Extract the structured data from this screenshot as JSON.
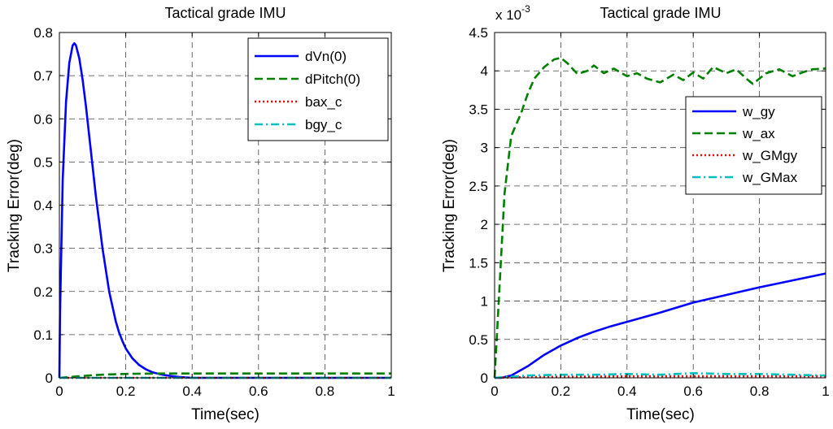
{
  "chart_data": [
    {
      "type": "line",
      "title": "Tactical grade IMU",
      "xlabel": "Time(sec)",
      "ylabel": "Tracking Error(deg)",
      "xlim": [
        0,
        1
      ],
      "ylim": [
        0,
        0.8
      ],
      "xticks": [
        0,
        0.2,
        0.4,
        0.6,
        0.8,
        1
      ],
      "xtick_labels": [
        "0",
        "0.2",
        "0.4",
        "0.6",
        "0.8",
        "1"
      ],
      "yticks": [
        0,
        0.1,
        0.2,
        0.3,
        0.4,
        0.5,
        0.6,
        0.7,
        0.8
      ],
      "ytick_labels": [
        "0",
        "0.1",
        "0.2",
        "0.3",
        "0.4",
        "0.5",
        "0.6",
        "0.7",
        "0.8"
      ],
      "grid": true,
      "legend_position": "top-right",
      "series": [
        {
          "name": "dVn(0)",
          "color": "#0000ff",
          "style": "solid",
          "x": [
            0,
            0.002,
            0.01,
            0.02,
            0.03,
            0.04,
            0.045,
            0.05,
            0.06,
            0.07,
            0.08,
            0.09,
            0.1,
            0.11,
            0.12,
            0.13,
            0.14,
            0.15,
            0.16,
            0.17,
            0.18,
            0.19,
            0.2,
            0.22,
            0.24,
            0.26,
            0.28,
            0.3,
            0.32,
            0.34,
            0.36,
            0.4,
            0.5,
            0.6,
            0.7,
            0.8,
            0.9,
            1.0
          ],
          "y": [
            0,
            0.15,
            0.46,
            0.64,
            0.73,
            0.77,
            0.775,
            0.77,
            0.74,
            0.69,
            0.63,
            0.56,
            0.49,
            0.42,
            0.36,
            0.3,
            0.25,
            0.2,
            0.165,
            0.13,
            0.105,
            0.085,
            0.068,
            0.045,
            0.03,
            0.02,
            0.013,
            0.009,
            0.006,
            0.004,
            0.002,
            0.0,
            0.0,
            0.0,
            0.0,
            0.0,
            0.0,
            0.0
          ]
        },
        {
          "name": "dPitch(0)",
          "color": "#008000",
          "style": "dashed",
          "x": [
            0,
            0.05,
            0.1,
            0.15,
            0.2,
            0.3,
            0.4,
            0.6,
            0.8,
            1.0
          ],
          "y": [
            0,
            0.003,
            0.006,
            0.008,
            0.009,
            0.01,
            0.01,
            0.01,
            0.01,
            0.01
          ]
        },
        {
          "name": "bax_c",
          "color": "#ff0000",
          "style": "dotted",
          "x": [
            0,
            1
          ],
          "y": [
            0,
            0
          ]
        },
        {
          "name": "bgy_c",
          "color": "#00bfbf",
          "style": "dashdot",
          "x": [
            0,
            1
          ],
          "y": [
            0,
            0
          ]
        }
      ]
    },
    {
      "type": "line",
      "title": "Tactical grade IMU",
      "multiplier": "x 10",
      "multiplier_exponent": "-3",
      "xlabel": "Time(sec)",
      "ylabel": "Tracking Error(deg)",
      "xlim": [
        0,
        1
      ],
      "ylim": [
        0,
        4.5
      ],
      "xticks": [
        0,
        0.2,
        0.4,
        0.6,
        0.8,
        1
      ],
      "xtick_labels": [
        "0",
        "0.2",
        "0.4",
        "0.6",
        "0.8",
        "1"
      ],
      "yticks": [
        0,
        0.5,
        1,
        1.5,
        2,
        2.5,
        3,
        3.5,
        4,
        4.5
      ],
      "ytick_labels": [
        "0",
        "0.5",
        "1",
        "1.5",
        "2",
        "2.5",
        "3",
        "3.5",
        "4",
        "4.5"
      ],
      "grid": true,
      "legend_position": "right",
      "series": [
        {
          "name": "w_gy",
          "color": "#0000ff",
          "style": "solid",
          "x": [
            0,
            0.02,
            0.05,
            0.1,
            0.15,
            0.2,
            0.25,
            0.3,
            0.35,
            0.4,
            0.5,
            0.6,
            0.7,
            0.8,
            0.9,
            1.0
          ],
          "y": [
            0,
            0.0,
            0.03,
            0.15,
            0.3,
            0.42,
            0.52,
            0.6,
            0.67,
            0.73,
            0.85,
            0.98,
            1.08,
            1.18,
            1.27,
            1.36
          ]
        },
        {
          "name": "w_ax",
          "color": "#008000",
          "style": "dashed",
          "x": [
            0,
            0.01,
            0.03,
            0.05,
            0.08,
            0.1,
            0.12,
            0.15,
            0.18,
            0.2,
            0.22,
            0.25,
            0.28,
            0.3,
            0.33,
            0.36,
            0.4,
            0.43,
            0.46,
            0.5,
            0.54,
            0.57,
            0.6,
            0.63,
            0.66,
            0.7,
            0.73,
            0.76,
            0.78,
            0.82,
            0.86,
            0.9,
            0.93,
            0.96,
            1.0
          ],
          "y": [
            0,
            0.8,
            2.4,
            3.15,
            3.45,
            3.7,
            3.9,
            4.05,
            4.15,
            4.17,
            4.1,
            3.96,
            4.0,
            4.07,
            3.97,
            4.03,
            3.93,
            3.97,
            3.9,
            3.85,
            3.95,
            3.88,
            3.98,
            3.9,
            4.05,
            3.97,
            4.02,
            3.9,
            3.83,
            3.97,
            4.02,
            3.93,
            3.98,
            4.02,
            4.03
          ]
        },
        {
          "name": "w_GMgy",
          "color": "#ff0000",
          "style": "dotted",
          "x": [
            0,
            0.1,
            0.4,
            0.7,
            1.0
          ],
          "y": [
            0,
            0.01,
            0.02,
            0.02,
            0.02
          ]
        },
        {
          "name": "w_GMax",
          "color": "#00bfbf",
          "style": "dashdot",
          "x": [
            0,
            0.1,
            0.2,
            0.3,
            0.4,
            0.5,
            0.6,
            0.7,
            0.8,
            0.9,
            1.0
          ],
          "y": [
            0,
            0.03,
            0.04,
            0.04,
            0.05,
            0.04,
            0.06,
            0.05,
            0.05,
            0.04,
            0.03
          ]
        }
      ]
    }
  ]
}
